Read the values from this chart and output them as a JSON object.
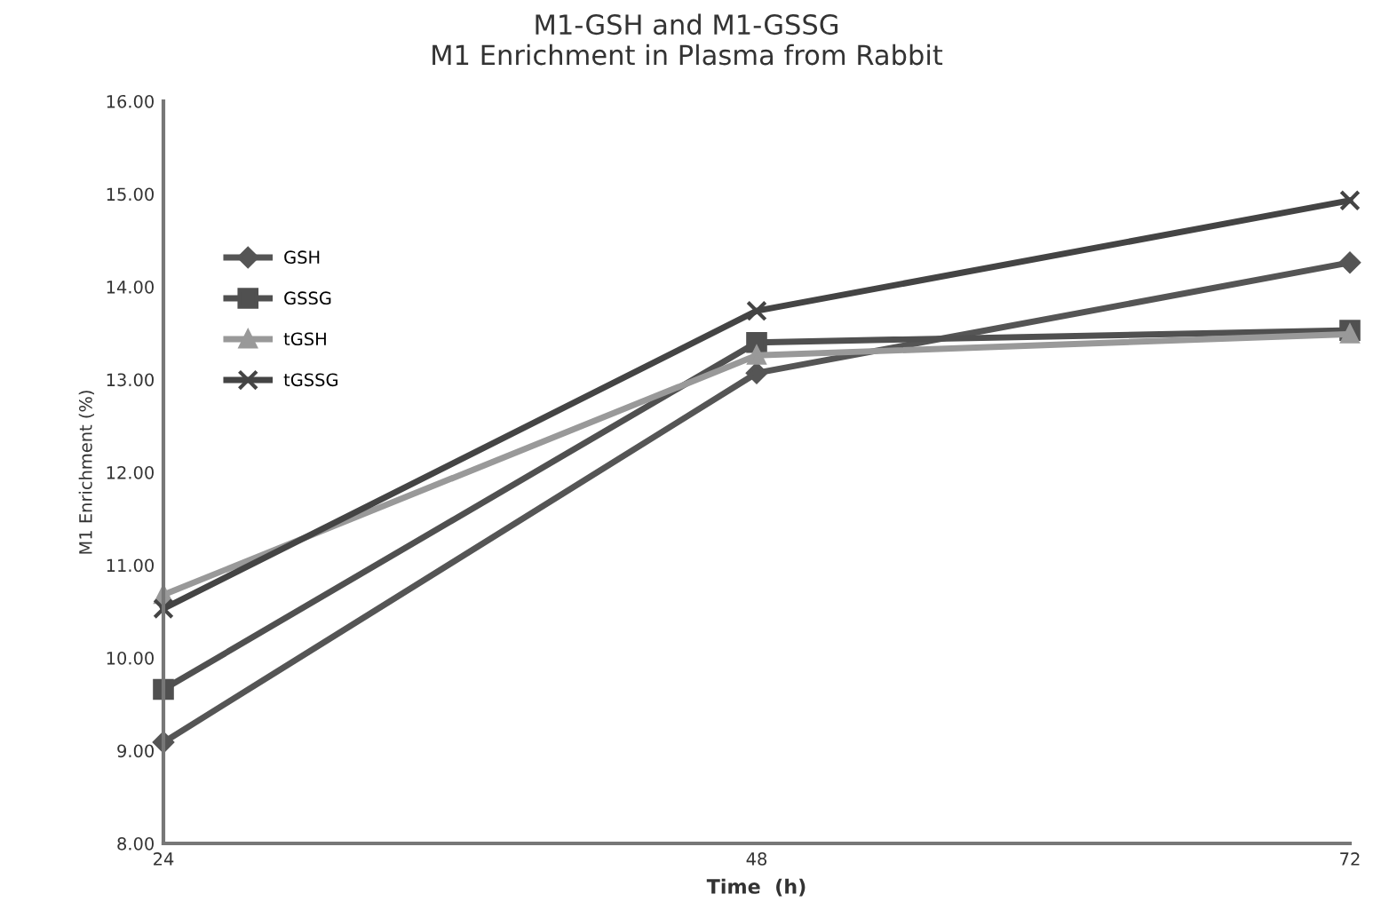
{
  "chart_data": {
    "type": "line",
    "title": "M1-GSH and M1-GSSG\nM1 Enrichment in Plasma from Rabbit",
    "xlabel": "Time  (h)",
    "ylabel": "M1 Enrichment (%)",
    "x": [
      24,
      48,
      72
    ],
    "xlim": [
      24,
      72
    ],
    "xticks": [
      24,
      48,
      72
    ],
    "ylim": [
      8,
      16
    ],
    "yticks": [
      {
        "value": 8,
        "label": "8.00"
      },
      {
        "value": 9,
        "label": "9.00"
      },
      {
        "value": 10,
        "label": "10.00"
      },
      {
        "value": 11,
        "label": "11.00"
      },
      {
        "value": 12,
        "label": "12.00"
      },
      {
        "value": 13,
        "label": "13.00"
      },
      {
        "value": 14,
        "label": "14.00"
      },
      {
        "value": 15,
        "label": "15.00"
      },
      {
        "value": 16,
        "label": "16.00"
      }
    ],
    "grid": false,
    "legend": "top left",
    "series": [
      {
        "name": "GSH",
        "color": "#555555",
        "marker": "diamond",
        "values": [
          9.09,
          13.07,
          14.26
        ]
      },
      {
        "name": "GSSG",
        "color": "#505050",
        "marker": "square",
        "values": [
          9.66,
          13.4,
          13.53
        ]
      },
      {
        "name": "tGSH",
        "color": "#999999",
        "marker": "triangle",
        "values": [
          10.68,
          13.26,
          13.49
        ]
      },
      {
        "name": "tGSSG",
        "color": "#444444",
        "marker": "cross",
        "values": [
          10.53,
          13.74,
          14.93
        ]
      }
    ]
  }
}
